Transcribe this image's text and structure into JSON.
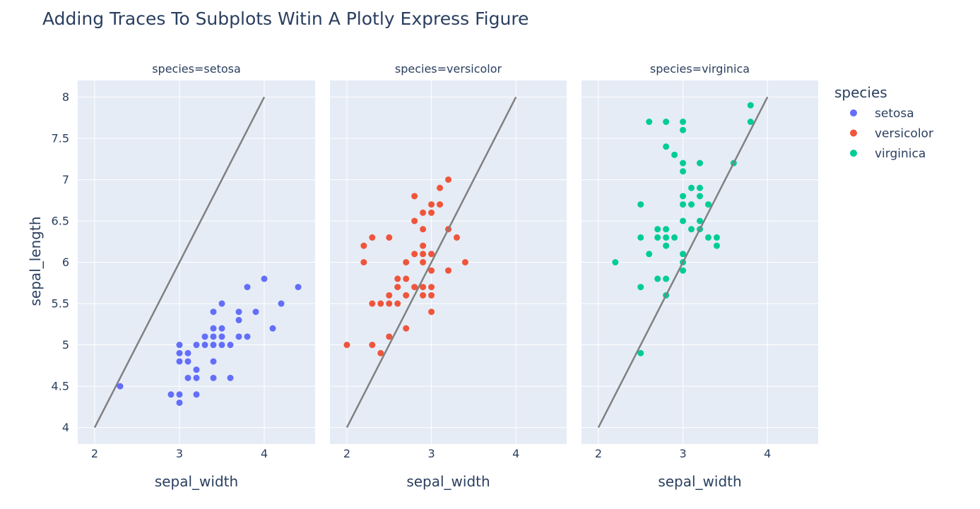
{
  "chart_data": {
    "type": "scatter",
    "title": "Adding Traces To Subplots Witin A Plotly Express Figure",
    "xlabel": "sepal_width",
    "ylabel": "sepal_length",
    "xlim": [
      1.8,
      4.6
    ],
    "ylim": [
      3.8,
      8.2
    ],
    "x_ticks": [
      "2",
      "3",
      "4"
    ],
    "y_ticks": [
      "4",
      "4.5",
      "5",
      "5.5",
      "6",
      "6.5",
      "7",
      "7.5",
      "8"
    ],
    "grid": true,
    "legend_title": "species",
    "legend_position": "top-right",
    "line_color": "#808080",
    "reference_line": {
      "x": [
        2,
        4
      ],
      "y": [
        4,
        8
      ]
    },
    "facets": [
      {
        "label": "species=setosa",
        "name": "setosa",
        "color": "#636efa",
        "points": [
          [
            2.3,
            4.5
          ],
          [
            2.9,
            4.4
          ],
          [
            3,
            4.4
          ],
          [
            3,
            4.3
          ],
          [
            3.2,
            4.4
          ],
          [
            3,
            5
          ],
          [
            3,
            4.9
          ],
          [
            3.1,
            4.9
          ],
          [
            3,
            4.8
          ],
          [
            3.1,
            4.8
          ],
          [
            3.1,
            4.6
          ],
          [
            3.2,
            4.6
          ],
          [
            3.2,
            4.7
          ],
          [
            3.2,
            5
          ],
          [
            3.3,
            5
          ],
          [
            3.3,
            5.1
          ],
          [
            3.4,
            5
          ],
          [
            3.4,
            5.1
          ],
          [
            3.4,
            5.2
          ],
          [
            3.4,
            5.4
          ],
          [
            3.4,
            4.8
          ],
          [
            3.4,
            4.6
          ],
          [
            3.5,
            5
          ],
          [
            3.5,
            5.1
          ],
          [
            3.5,
            5.2
          ],
          [
            3.5,
            5.5
          ],
          [
            3.6,
            5
          ],
          [
            3.6,
            4.6
          ],
          [
            3.7,
            5.1
          ],
          [
            3.7,
            5.3
          ],
          [
            3.7,
            5.4
          ],
          [
            3.8,
            5.1
          ],
          [
            3.8,
            5.7
          ],
          [
            3.9,
            5.4
          ],
          [
            4,
            5.8
          ],
          [
            4.1,
            5.2
          ],
          [
            4.2,
            5.5
          ],
          [
            4.4,
            5.7
          ]
        ]
      },
      {
        "label": "species=versicolor",
        "name": "versicolor",
        "color": "#ef553b",
        "points": [
          [
            2,
            5
          ],
          [
            2.2,
            6
          ],
          [
            2.2,
            6.2
          ],
          [
            2.3,
            6.3
          ],
          [
            2.3,
            5.5
          ],
          [
            2.3,
            5
          ],
          [
            2.4,
            5.5
          ],
          [
            2.4,
            4.9
          ],
          [
            2.5,
            6.3
          ],
          [
            2.5,
            5.6
          ],
          [
            2.5,
            5.5
          ],
          [
            2.5,
            5.1
          ],
          [
            2.6,
            5.8
          ],
          [
            2.6,
            5.7
          ],
          [
            2.6,
            5.5
          ],
          [
            2.7,
            6
          ],
          [
            2.7,
            5.8
          ],
          [
            2.7,
            5.6
          ],
          [
            2.7,
            5.2
          ],
          [
            2.8,
            6.8
          ],
          [
            2.8,
            6.5
          ],
          [
            2.8,
            6.1
          ],
          [
            2.8,
            5.7
          ],
          [
            2.9,
            6.6
          ],
          [
            2.9,
            6.4
          ],
          [
            2.9,
            6.2
          ],
          [
            2.9,
            6.1
          ],
          [
            2.9,
            6
          ],
          [
            2.9,
            5.7
          ],
          [
            2.9,
            5.6
          ],
          [
            3,
            6.7
          ],
          [
            3,
            6.6
          ],
          [
            3,
            6.1
          ],
          [
            3,
            5.9
          ],
          [
            3,
            5.7
          ],
          [
            3,
            5.6
          ],
          [
            3,
            5.4
          ],
          [
            3.1,
            6.9
          ],
          [
            3.1,
            6.7
          ],
          [
            3.2,
            7
          ],
          [
            3.2,
            6.4
          ],
          [
            3.2,
            5.9
          ],
          [
            3.3,
            6.3
          ],
          [
            3.4,
            6
          ]
        ]
      },
      {
        "label": "species=virginica",
        "name": "virginica",
        "color": "#00cc96",
        "points": [
          [
            2.2,
            6
          ],
          [
            2.5,
            6.7
          ],
          [
            2.5,
            6.3
          ],
          [
            2.5,
            5.7
          ],
          [
            2.5,
            4.9
          ],
          [
            2.6,
            7.7
          ],
          [
            2.6,
            6.1
          ],
          [
            2.7,
            6.4
          ],
          [
            2.7,
            6.3
          ],
          [
            2.7,
            5.8
          ],
          [
            2.8,
            7.7
          ],
          [
            2.8,
            7.4
          ],
          [
            2.8,
            6.4
          ],
          [
            2.8,
            6.3
          ],
          [
            2.8,
            6.2
          ],
          [
            2.8,
            5.8
          ],
          [
            2.8,
            5.6
          ],
          [
            2.9,
            7.3
          ],
          [
            2.9,
            6.3
          ],
          [
            3,
            7.7
          ],
          [
            3,
            7.6
          ],
          [
            3,
            7.2
          ],
          [
            3,
            7.1
          ],
          [
            3,
            6.8
          ],
          [
            3,
            6.7
          ],
          [
            3,
            6.5
          ],
          [
            3,
            6.1
          ],
          [
            3,
            6
          ],
          [
            3,
            5.9
          ],
          [
            3.1,
            6.9
          ],
          [
            3.1,
            6.7
          ],
          [
            3.1,
            6.4
          ],
          [
            3.2,
            7.2
          ],
          [
            3.2,
            6.9
          ],
          [
            3.2,
            6.8
          ],
          [
            3.2,
            6.5
          ],
          [
            3.2,
            6.4
          ],
          [
            3.3,
            6.7
          ],
          [
            3.3,
            6.3
          ],
          [
            3.4,
            6.3
          ],
          [
            3.4,
            6.2
          ],
          [
            3.6,
            7.2
          ],
          [
            3.8,
            7.9
          ],
          [
            3.8,
            7.7
          ]
        ]
      }
    ]
  }
}
